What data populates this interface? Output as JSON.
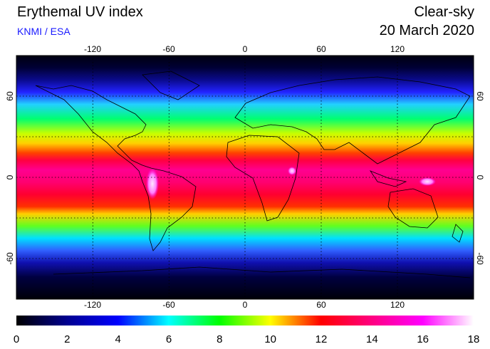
{
  "header": {
    "title": "Erythemal UV index",
    "credit": "KNMI / ESA",
    "mode": "Clear-sky",
    "date": "20 March 2020"
  },
  "map": {
    "lon_ticks": [
      "-120",
      "-60",
      "0",
      "60",
      "120"
    ],
    "lon_values": [
      -120,
      -60,
      0,
      60,
      120
    ],
    "lat_ticks": [
      "60",
      "0",
      "-60"
    ],
    "lat_values": [
      60,
      0,
      -60
    ],
    "lon_range": [
      -180,
      180
    ],
    "lat_range": [
      -90,
      90
    ],
    "gridlines": "dotted",
    "coastline_color": "#000000"
  },
  "colorbar": {
    "labels": [
      "0",
      "2",
      "4",
      "6",
      "8",
      "10",
      "12",
      "14",
      "16",
      "18"
    ],
    "min": 0,
    "max": 18,
    "colors": [
      "#000000",
      "#0000ff",
      "#00ffff",
      "#00ff00",
      "#ffff00",
      "#ff0000",
      "#ff00ff",
      "#ffffff"
    ]
  }
}
